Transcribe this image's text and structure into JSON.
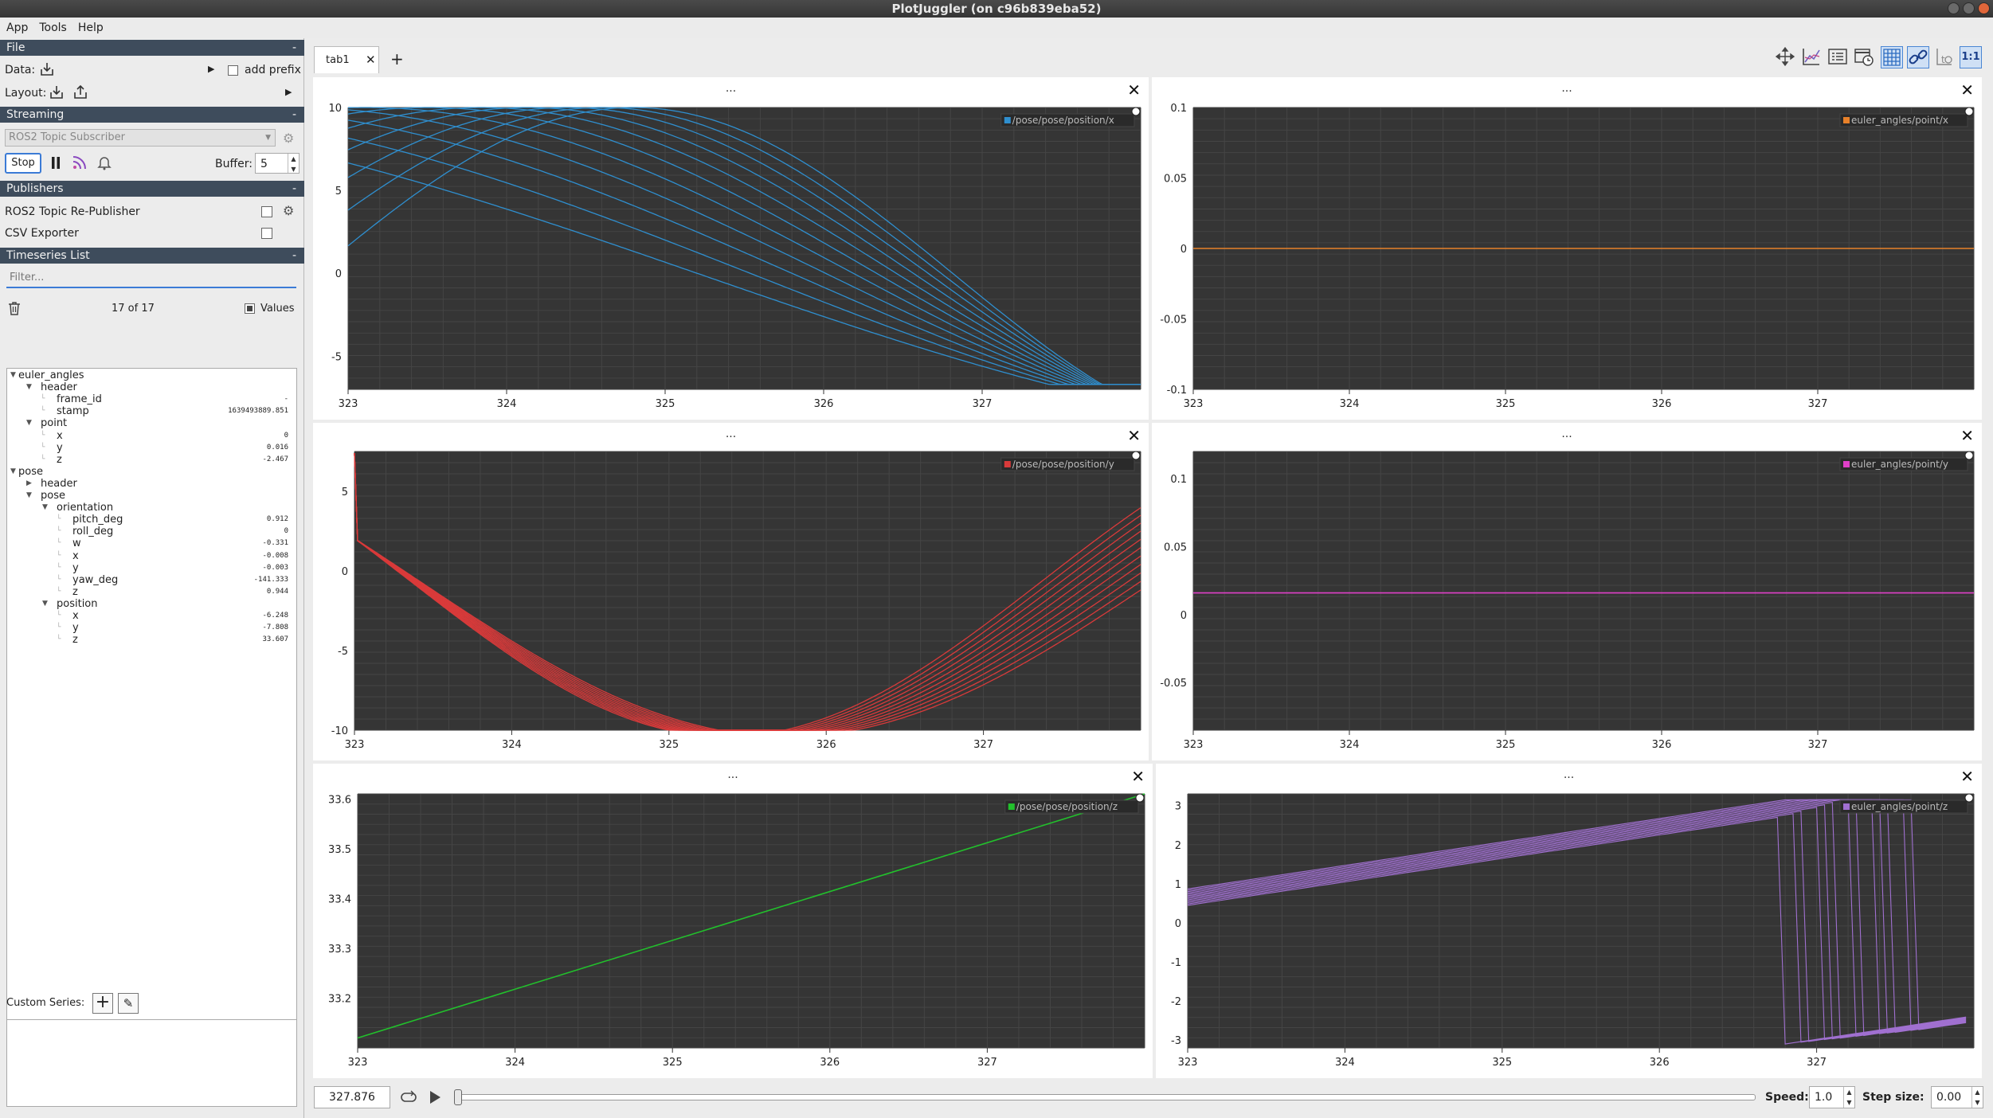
{
  "window": {
    "title": "PlotJuggler (on c96b839eba52)"
  },
  "menu": [
    "App",
    "Tools",
    "Help"
  ],
  "file": {
    "section": "File",
    "collapse": "-",
    "data_label": "Data:",
    "add_prefix": "add prefix",
    "layout_label": "Layout:"
  },
  "streaming": {
    "section": "Streaming",
    "collapse": "-",
    "source": "ROS2 Topic Subscriber",
    "stop": "Stop",
    "buffer_label": "Buffer:",
    "buffer_value": "5"
  },
  "publishers": {
    "section": "Publishers",
    "collapse": "-",
    "items": [
      "ROS2 Topic Re-Publisher",
      "CSV Exporter"
    ]
  },
  "timeseries": {
    "section": "Timeseries List",
    "collapse": "-",
    "filter_placeholder": "Filter...",
    "count": "17 of 17",
    "values_label": "Values",
    "tree": [
      {
        "label": "euler_angles",
        "depth": 0,
        "arrow": "down",
        "value": ""
      },
      {
        "label": "header",
        "depth": 1,
        "arrow": "down",
        "value": ""
      },
      {
        "label": "frame_id",
        "depth": 2,
        "arrow": "",
        "value": "-"
      },
      {
        "label": "stamp",
        "depth": 2,
        "arrow": "",
        "value": "1639493889.851"
      },
      {
        "label": "point",
        "depth": 1,
        "arrow": "down",
        "value": ""
      },
      {
        "label": "x",
        "depth": 2,
        "arrow": "",
        "value": "0"
      },
      {
        "label": "y",
        "depth": 2,
        "arrow": "",
        "value": "0.016"
      },
      {
        "label": "z",
        "depth": 2,
        "arrow": "",
        "value": "-2.467"
      },
      {
        "label": "pose",
        "depth": 0,
        "arrow": "down",
        "value": ""
      },
      {
        "label": "header",
        "depth": 1,
        "arrow": "right",
        "value": ""
      },
      {
        "label": "pose",
        "depth": 1,
        "arrow": "down",
        "value": ""
      },
      {
        "label": "orientation",
        "depth": 2,
        "arrow": "down",
        "value": ""
      },
      {
        "label": "pitch_deg",
        "depth": 3,
        "arrow": "",
        "value": "0.912"
      },
      {
        "label": "roll_deg",
        "depth": 3,
        "arrow": "",
        "value": "0"
      },
      {
        "label": "w",
        "depth": 3,
        "arrow": "",
        "value": "-0.331"
      },
      {
        "label": "x",
        "depth": 3,
        "arrow": "",
        "value": "-0.008"
      },
      {
        "label": "y",
        "depth": 3,
        "arrow": "",
        "value": "-0.003"
      },
      {
        "label": "yaw_deg",
        "depth": 3,
        "arrow": "",
        "value": "-141.333"
      },
      {
        "label": "z",
        "depth": 3,
        "arrow": "",
        "value": "0.944"
      },
      {
        "label": "position",
        "depth": 2,
        "arrow": "down",
        "value": ""
      },
      {
        "label": "x",
        "depth": 3,
        "arrow": "",
        "value": "-6.248"
      },
      {
        "label": "y",
        "depth": 3,
        "arrow": "",
        "value": "-7.808"
      },
      {
        "label": "z",
        "depth": 3,
        "arrow": "",
        "value": "33.607"
      }
    ]
  },
  "custom_series": {
    "label": "Custom Series:"
  },
  "tabs": [
    {
      "label": "tab1"
    }
  ],
  "toolbar_icons": [
    "move-icon",
    "chart-icon",
    "legend-icon",
    "clock-icon",
    "grid-icon",
    "link-icon",
    "time-offset-icon",
    "ratio-icon"
  ],
  "toolbar_ratio_label": "1:1",
  "plot_header": "...",
  "playback": {
    "time": "327.876",
    "speed_label": "Speed:",
    "speed": "1.0",
    "step_label": "Step size:",
    "step": "0.00",
    "progress": 0.0
  },
  "chart_data": [
    {
      "type": "line",
      "legend": "/pose/pose/position/x",
      "color": "#2f8fcf",
      "xlim": [
        323,
        328
      ],
      "ylim": [
        -7,
        10
      ],
      "xticks": [
        323,
        324,
        325,
        326,
        327
      ],
      "yticks": [
        10,
        5,
        0,
        -5
      ],
      "series_desc": "11 overlapping sinusoidal traces, peak 10, converge at x=328 y=-6.7",
      "samples_x": [
        323,
        324,
        325,
        326,
        327,
        328
      ],
      "samples_y": [
        2.6,
        8.3,
        10,
        7.9,
        2.5,
        -6.7
      ]
    },
    {
      "type": "line",
      "legend": "euler_angles/point/x",
      "color": "#e8812a",
      "xlim": [
        323,
        328
      ],
      "ylim": [
        -0.1,
        0.1
      ],
      "xticks": [
        323,
        324,
        325,
        326,
        327
      ],
      "yticks": [
        0.1,
        0.05,
        0,
        -0.05,
        -0.1
      ],
      "samples_x": [
        323,
        328
      ],
      "samples_y": [
        0,
        0
      ]
    },
    {
      "type": "line",
      "legend": "/pose/pose/position/y",
      "color": "#d93a3a",
      "xlim": [
        323,
        328
      ],
      "ylim": [
        -10,
        7.5
      ],
      "xticks": [
        323,
        324,
        325,
        326,
        327
      ],
      "yticks": [
        5,
        0,
        -5,
        -10
      ],
      "samples_x": [
        323,
        324,
        325,
        326,
        327,
        328
      ],
      "samples_y": [
        7.5,
        3,
        -3,
        -8.5,
        -10,
        -8.5
      ]
    },
    {
      "type": "line",
      "legend": "euler_angles/point/y",
      "color": "#e040c8",
      "xlim": [
        323,
        328
      ],
      "ylim": [
        -0.085,
        0.12
      ],
      "xticks": [
        323,
        324,
        325,
        326,
        327
      ],
      "yticks": [
        0.1,
        0.05,
        0,
        -0.05
      ],
      "samples_x": [
        323,
        328
      ],
      "samples_y": [
        0.016,
        0.016
      ]
    },
    {
      "type": "line",
      "legend": "/pose/pose/position/z",
      "color": "#22c02c",
      "xlim": [
        323,
        328
      ],
      "ylim": [
        33.1,
        33.61
      ],
      "xticks": [
        323,
        324,
        325,
        326,
        327
      ],
      "yticks": [
        33.6,
        33.5,
        33.4,
        33.3,
        33.2
      ],
      "samples_x": [
        323,
        328
      ],
      "samples_y": [
        33.12,
        33.61
      ]
    },
    {
      "type": "line",
      "legend": "euler_angles/point/z",
      "color": "#a070d0",
      "xlim": [
        323,
        328
      ],
      "ylim": [
        -3.2,
        3.3
      ],
      "xticks": [
        323,
        324,
        325,
        326,
        327
      ],
      "yticks": [
        3,
        2,
        1,
        0,
        -1,
        -2,
        -3
      ],
      "samples_x": [
        323,
        326.8,
        328
      ],
      "samples_y": [
        0.6,
        3.1,
        -2.5
      ]
    }
  ]
}
